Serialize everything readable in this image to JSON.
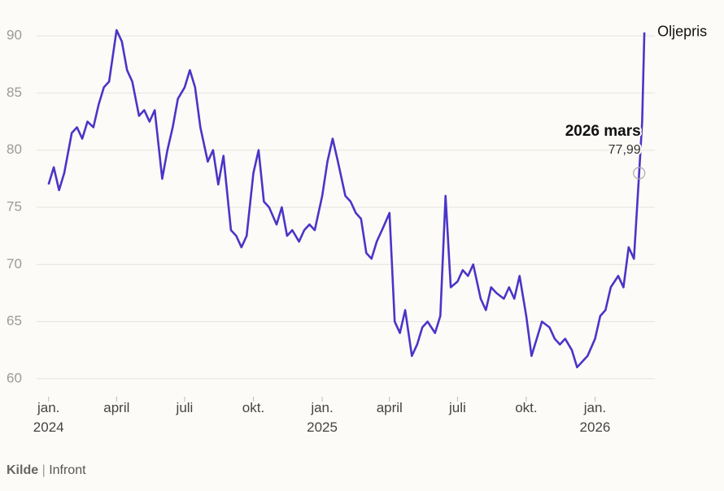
{
  "chart_data": {
    "type": "line",
    "series": [
      {
        "name": "Oljepris",
        "color": "#4a35c8",
        "values": [
          77,
          78.5,
          76.5,
          78,
          81.5,
          82,
          81,
          82.5,
          82,
          84,
          85.5,
          86,
          90.5,
          89.5,
          87,
          86,
          83,
          83.5,
          82.5,
          83.5,
          77.5,
          80,
          82,
          84.5,
          85.5,
          87,
          85.5,
          82,
          79,
          80,
          77,
          79.5,
          73,
          72.5,
          71.5,
          72.5,
          78,
          80,
          75.5,
          75,
          73.5,
          75,
          72.5,
          73,
          72,
          73,
          73.5,
          73,
          76,
          79,
          81,
          79,
          76,
          75.5,
          74.5,
          74,
          71,
          70.5,
          72,
          73,
          74.5,
          65,
          64,
          66,
          62,
          63,
          64.5,
          65,
          64,
          65.5,
          76,
          68,
          68.5,
          69.5,
          69,
          70,
          67,
          66,
          68,
          67.5,
          67,
          68,
          67,
          69,
          65.5,
          62,
          63.5,
          65,
          64.5,
          63.5,
          63,
          63.5,
          62.5,
          61,
          61.5,
          62,
          63.5,
          65.5,
          66,
          68,
          69,
          68,
          71.5,
          70.5,
          77.99,
          82.5,
          90.3
        ]
      }
    ],
    "x": [
      "2024-01-01",
      "2024-01-08",
      "2024-01-15",
      "2024-01-22",
      "2024-02-01",
      "2024-02-08",
      "2024-02-15",
      "2024-02-22",
      "2024-03-01",
      "2024-03-08",
      "2024-03-15",
      "2024-03-22",
      "2024-04-01",
      "2024-04-08",
      "2024-04-15",
      "2024-04-22",
      "2024-05-01",
      "2024-05-08",
      "2024-05-15",
      "2024-05-22",
      "2024-06-01",
      "2024-06-08",
      "2024-06-15",
      "2024-06-22",
      "2024-07-01",
      "2024-07-08",
      "2024-07-15",
      "2024-07-22",
      "2024-08-01",
      "2024-08-08",
      "2024-08-15",
      "2024-08-22",
      "2024-09-01",
      "2024-09-08",
      "2024-09-15",
      "2024-09-22",
      "2024-10-01",
      "2024-10-08",
      "2024-10-15",
      "2024-10-22",
      "2024-11-01",
      "2024-11-08",
      "2024-11-15",
      "2024-11-22",
      "2024-12-01",
      "2024-12-08",
      "2024-12-15",
      "2024-12-22",
      "2025-01-01",
      "2025-01-08",
      "2025-01-15",
      "2025-01-22",
      "2025-02-01",
      "2025-02-08",
      "2025-02-15",
      "2025-02-22",
      "2025-03-01",
      "2025-03-08",
      "2025-03-15",
      "2025-03-22",
      "2025-04-01",
      "2025-04-08",
      "2025-04-15",
      "2025-04-22",
      "2025-05-01",
      "2025-05-08",
      "2025-05-15",
      "2025-05-22",
      "2025-06-01",
      "2025-06-08",
      "2025-06-15",
      "2025-06-22",
      "2025-07-01",
      "2025-07-08",
      "2025-07-15",
      "2025-07-22",
      "2025-08-01",
      "2025-08-08",
      "2025-08-15",
      "2025-08-22",
      "2025-09-01",
      "2025-09-08",
      "2025-09-15",
      "2025-09-22",
      "2025-10-01",
      "2025-10-08",
      "2025-10-15",
      "2025-10-22",
      "2025-11-01",
      "2025-11-08",
      "2025-11-15",
      "2025-11-22",
      "2025-12-01",
      "2025-12-08",
      "2025-12-15",
      "2025-12-22",
      "2026-01-01",
      "2026-01-08",
      "2026-01-15",
      "2026-01-22",
      "2026-02-01",
      "2026-02-08",
      "2026-02-15",
      "2026-02-22",
      "2026-03-01",
      "2026-03-05",
      "2026-03-08"
    ],
    "xlim": [
      "2023-12-16",
      "2026-03-22"
    ],
    "xticks": [
      {
        "value": "2024-01-01",
        "label": "jan. 2024"
      },
      {
        "value": "2024-04-01",
        "label": "april"
      },
      {
        "value": "2024-07-01",
        "label": "juli"
      },
      {
        "value": "2024-10-01",
        "label": "okt."
      },
      {
        "value": "2025-01-01",
        "label": "jan. 2025"
      },
      {
        "value": "2025-04-01",
        "label": "april"
      },
      {
        "value": "2025-07-01",
        "label": "juli"
      },
      {
        "value": "2025-10-01",
        "label": "okt."
      },
      {
        "value": "2026-01-01",
        "label": "jan. 2026"
      }
    ],
    "ylim": [
      58,
      92
    ],
    "yticks": [
      60,
      65,
      70,
      75,
      80,
      85,
      90
    ],
    "grid": true,
    "annotation": {
      "label": "2026 mars",
      "x": "2026-03-01",
      "value": 77.99,
      "value_label": "77,99"
    },
    "source": {
      "label": "Kilde",
      "text": "Infront"
    }
  }
}
